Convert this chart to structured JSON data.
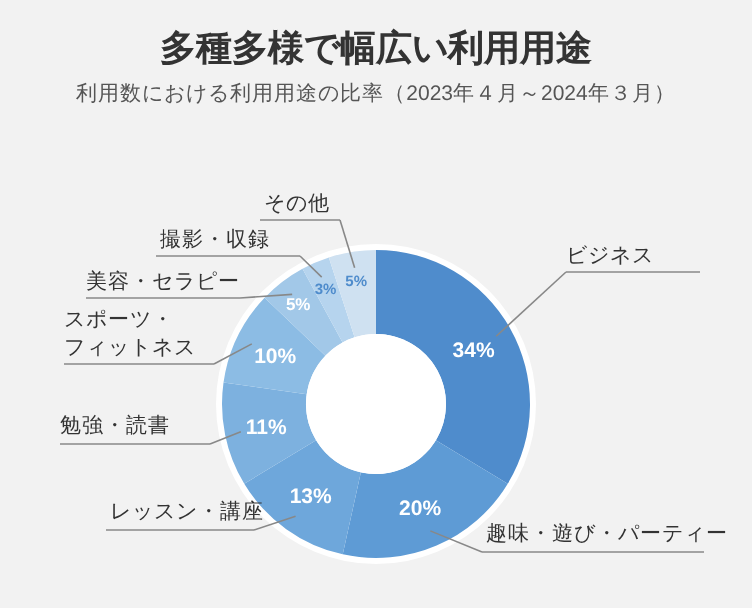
{
  "chart_data": {
    "type": "donut",
    "title": "多種多様で幅広い利用用途",
    "subtitle": "利用数における利用用途の比率（2023年４月～2024年３月）",
    "categories": [
      "ビジネス",
      "趣味・遊び・パーティー",
      "レッスン・講座",
      "勉強・読書",
      "スポーツ・フィットネス",
      "美容・セラピー",
      "撮影・収録",
      "その他"
    ],
    "values": [
      34,
      20,
      13,
      11,
      10,
      5,
      3,
      5
    ],
    "value_labels": [
      "34%",
      "20%",
      "13%",
      "11%",
      "10%",
      "5%",
      "3%",
      "5%"
    ],
    "colors": [
      "#4f8ccc",
      "#5e9bd5",
      "#6ea7db",
      "#7db1df",
      "#8cbce4",
      "#a2c8e8",
      "#b6d4ee",
      "#cfe1f1"
    ]
  }
}
